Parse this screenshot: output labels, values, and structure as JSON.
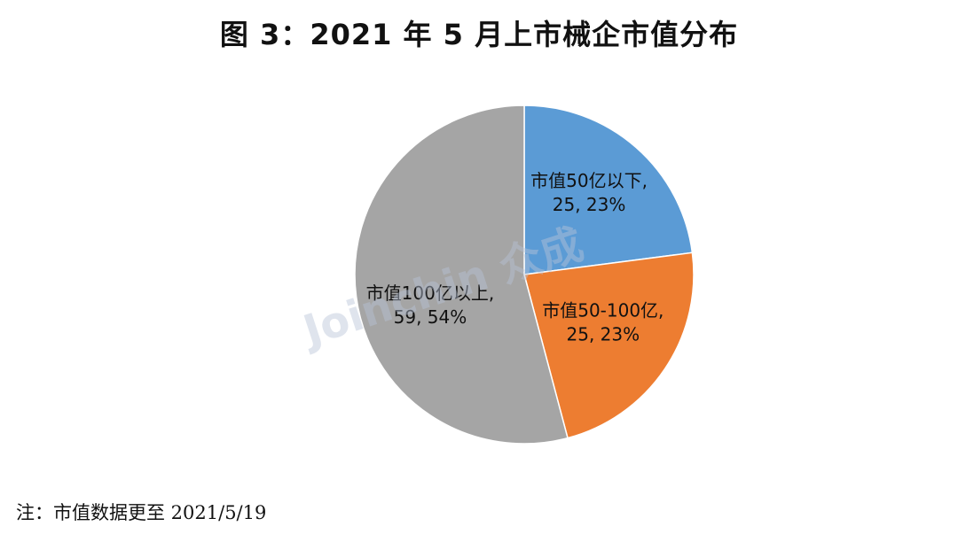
{
  "title": "图 3：2021 年 5 月上市械企市值分布",
  "note": "注：市值数据更至 2021/5/19",
  "watermark": "Joinchin 众成",
  "chart_data": {
    "type": "pie",
    "title": "图 3：2021 年 5 月上市械企市值分布",
    "start_angle_deg": 0,
    "direction": "clockwise",
    "slices": [
      {
        "label": "市值50亿以下",
        "value": 25,
        "percent": "23%",
        "color": "#5b9bd5"
      },
      {
        "label": "市值50-100亿",
        "value": 25,
        "percent": "23%",
        "color": "#ed7d31"
      },
      {
        "label": "市值100亿以上",
        "value": 59,
        "percent": "54%",
        "color": "#a5a5a5"
      }
    ],
    "legend": "none",
    "data_labels": "inside"
  }
}
